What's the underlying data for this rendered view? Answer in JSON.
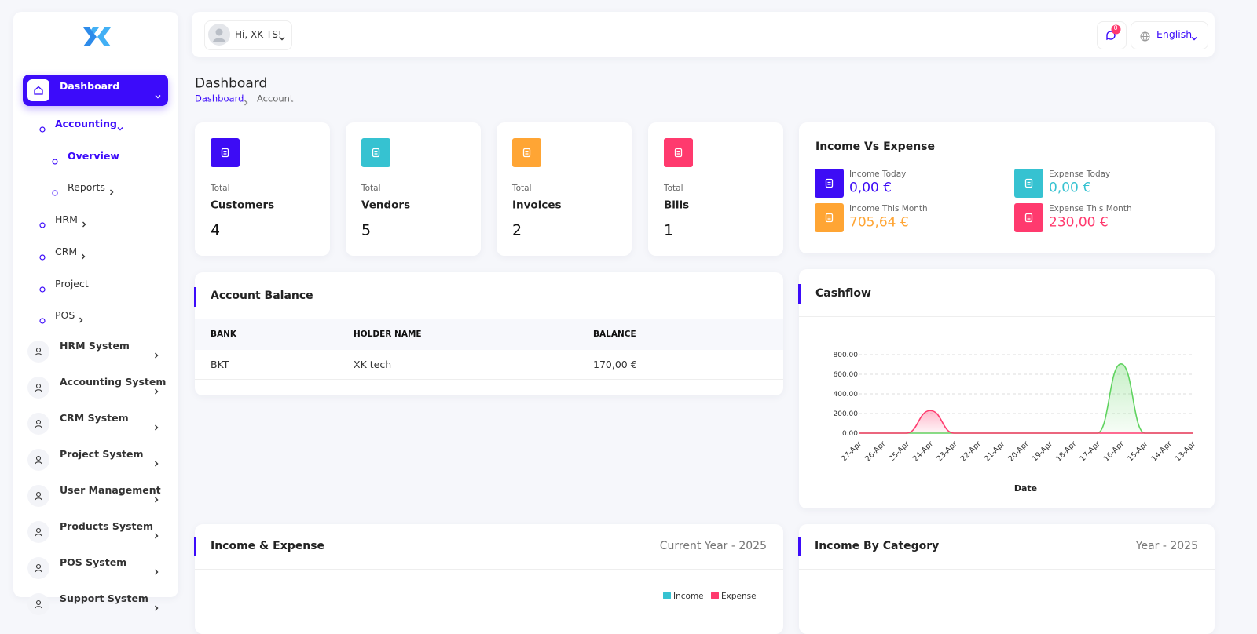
{
  "user_greeting": "Hi, XK TS!",
  "notification_count": 0,
  "language": "English",
  "page_title": "Dashboard",
  "breadcrumb": [
    "Dashboard",
    "Account"
  ],
  "sidebar": {
    "active": "Dashboard",
    "submenu": [
      {
        "label": "Accounting",
        "level": 1,
        "active": true,
        "arrow": "down"
      },
      {
        "label": "Overview",
        "level": 2,
        "active": true
      },
      {
        "label": "Reports",
        "level": 2,
        "arrow": "right"
      },
      {
        "label": "HRM",
        "level": 1,
        "arrow": "right"
      },
      {
        "label": "CRM",
        "level": 1,
        "arrow": "right"
      },
      {
        "label": "Project",
        "level": 1
      },
      {
        "label": "POS",
        "level": 1,
        "arrow": "right"
      }
    ],
    "modules": [
      "HRM System",
      "Accounting System",
      "CRM System",
      "Project System",
      "User Management",
      "Products System",
      "POS System",
      "Support System"
    ]
  },
  "stat_cards": [
    {
      "caption": "Total",
      "label": "Customers",
      "value": 4,
      "color": "#3d0cf5"
    },
    {
      "caption": "Total",
      "label": "Vendors",
      "value": 5,
      "color": "#36c2d1"
    },
    {
      "caption": "Total",
      "label": "Invoices",
      "value": 2,
      "color": "#ffa534"
    },
    {
      "caption": "Total",
      "label": "Bills",
      "value": 1,
      "color": "#ff3a6e"
    }
  ],
  "income_vs_expense": {
    "title": "Income Vs Expense",
    "items": [
      {
        "label": "Income Today",
        "value": "0,00 €",
        "color": "#3d0cf5"
      },
      {
        "label": "Expense Today",
        "value": "0,00 €",
        "color": "#36c2d1"
      },
      {
        "label": "Income This Month",
        "value": "705,64 €",
        "color": "#ffa534"
      },
      {
        "label": "Expense This Month",
        "value": "230,00 €",
        "color": "#ff3a6e"
      }
    ]
  },
  "account_balance": {
    "title": "Account Balance",
    "columns": [
      "BANK",
      "HOLDER NAME",
      "BALANCE"
    ],
    "rows": [
      [
        "BKT",
        "XK tech",
        "170,00 €"
      ]
    ]
  },
  "chart_data": {
    "type": "area",
    "title": "Cashflow",
    "x_label": "Date",
    "categories": [
      "27-Apr",
      "26-Apr",
      "25-Apr",
      "24-Apr",
      "23-Apr",
      "22-Apr",
      "21-Apr",
      "20-Apr",
      "19-Apr",
      "18-Apr",
      "17-Apr",
      "16-Apr",
      "15-Apr",
      "14-Apr",
      "13-Apr"
    ],
    "series": [
      {
        "name": "Income",
        "color": "#5fd35f",
        "values": [
          0,
          0,
          0,
          0,
          0,
          0,
          0,
          0,
          0,
          0,
          0,
          705.64,
          0,
          0,
          0
        ]
      },
      {
        "name": "Expense",
        "color": "#ff3a6e",
        "values": [
          0,
          0,
          0,
          230,
          0,
          0,
          0,
          0,
          0,
          0,
          0,
          0,
          0,
          0,
          0
        ]
      }
    ],
    "ylim": [
      0,
      800
    ],
    "yticks": [
      {
        "value": 0,
        "label": "0.00"
      },
      {
        "value": 200,
        "label": "200.00"
      },
      {
        "value": 400,
        "label": "400.00"
      },
      {
        "value": 600,
        "label": "600.00"
      },
      {
        "value": 800,
        "label": "800.00"
      }
    ],
    "grid": true
  },
  "income_expense": {
    "title": "Income & Expense",
    "period": "Current Year - 2025",
    "legend": [
      {
        "name": "Income",
        "color": "#36c2d1"
      },
      {
        "name": "Expense",
        "color": "#ff3a6e"
      }
    ]
  },
  "income_by_category": {
    "title": "Income By Category",
    "period": "Year - 2025"
  }
}
